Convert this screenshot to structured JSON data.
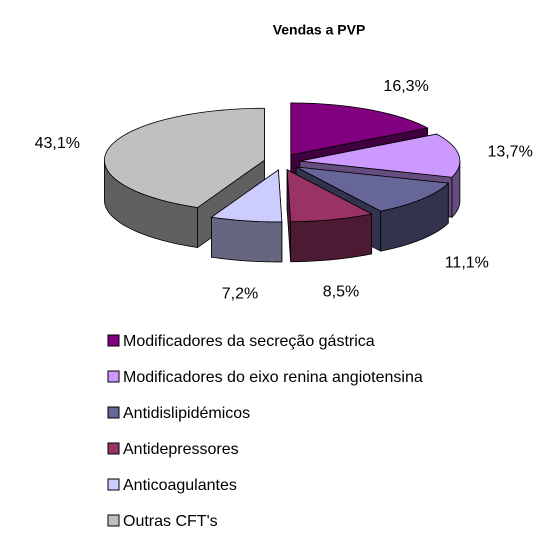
{
  "chart_data": {
    "type": "pie3d",
    "title": "Vendas a PVP",
    "categories": [
      "Modificadores da secreção gástrica",
      "Modificadores do eixo renina angiotensina",
      "Antidislipidémicos",
      "Antidepressores",
      "Anticoagulantes",
      "Outras CFT's"
    ],
    "values": [
      16.3,
      13.7,
      11.1,
      8.5,
      7.2,
      43.1
    ],
    "value_labels": [
      "16,3%",
      "13,7%",
      "11,1%",
      "8,5%",
      "7,2%",
      "43,1%"
    ],
    "colors": [
      "#800080",
      "#cc99ff",
      "#666699",
      "#993366",
      "#ccccff",
      "#c0c0c0"
    ],
    "legend": "bottom"
  }
}
